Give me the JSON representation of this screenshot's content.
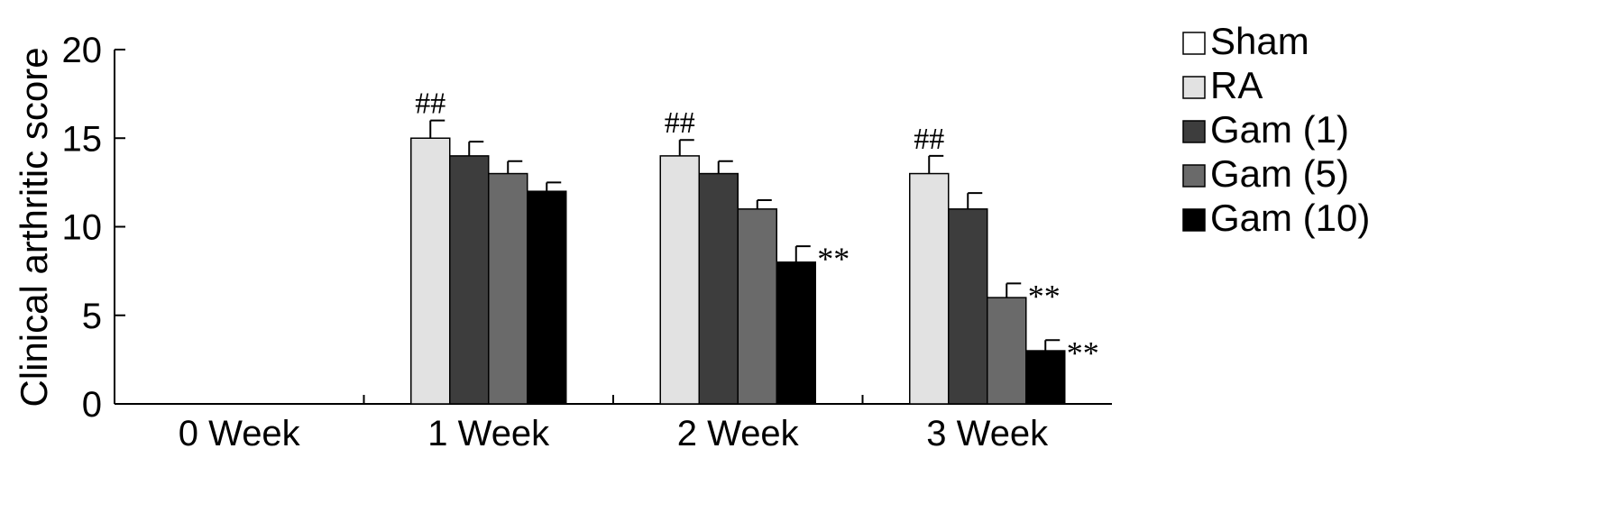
{
  "chart_data": {
    "type": "bar",
    "ylabel": "Clinical arthritic score",
    "xlabel": "",
    "ylim": [
      0,
      20
    ],
    "yticks": [
      0,
      5,
      10,
      15,
      20
    ],
    "grid": false,
    "legend_position": "right",
    "categories": [
      "0 Week",
      "1 Week",
      "2 Week",
      "3 Week"
    ],
    "series": [
      {
        "name": "Sham",
        "color": "#ffffff",
        "values": [
          0,
          0,
          0,
          0
        ],
        "errors": [
          0,
          0,
          0,
          0
        ],
        "annotations": [
          "",
          "",
          "",
          ""
        ]
      },
      {
        "name": "RA",
        "color": "#e2e2e2",
        "values": [
          0,
          15,
          14,
          13
        ],
        "errors": [
          0,
          1.0,
          0.9,
          1.0
        ],
        "annotations": [
          "",
          "##",
          "##",
          "##"
        ]
      },
      {
        "name": "Gam (1)",
        "color": "#3d3d3d",
        "values": [
          0,
          14,
          13,
          11
        ],
        "errors": [
          0,
          0.8,
          0.7,
          0.9
        ],
        "annotations": [
          "",
          "",
          "",
          ""
        ]
      },
      {
        "name": "Gam (5)",
        "color": "#6a6a6a",
        "values": [
          0,
          13,
          11,
          6
        ],
        "errors": [
          0,
          0.7,
          0.5,
          0.8
        ],
        "annotations": [
          "",
          "",
          "",
          "**"
        ]
      },
      {
        "name": "Gam (10)",
        "color": "#000000",
        "values": [
          0,
          12,
          8,
          3
        ],
        "errors": [
          0,
          0.5,
          0.9,
          0.6
        ],
        "annotations": [
          "",
          "",
          "**",
          "**"
        ]
      }
    ]
  }
}
